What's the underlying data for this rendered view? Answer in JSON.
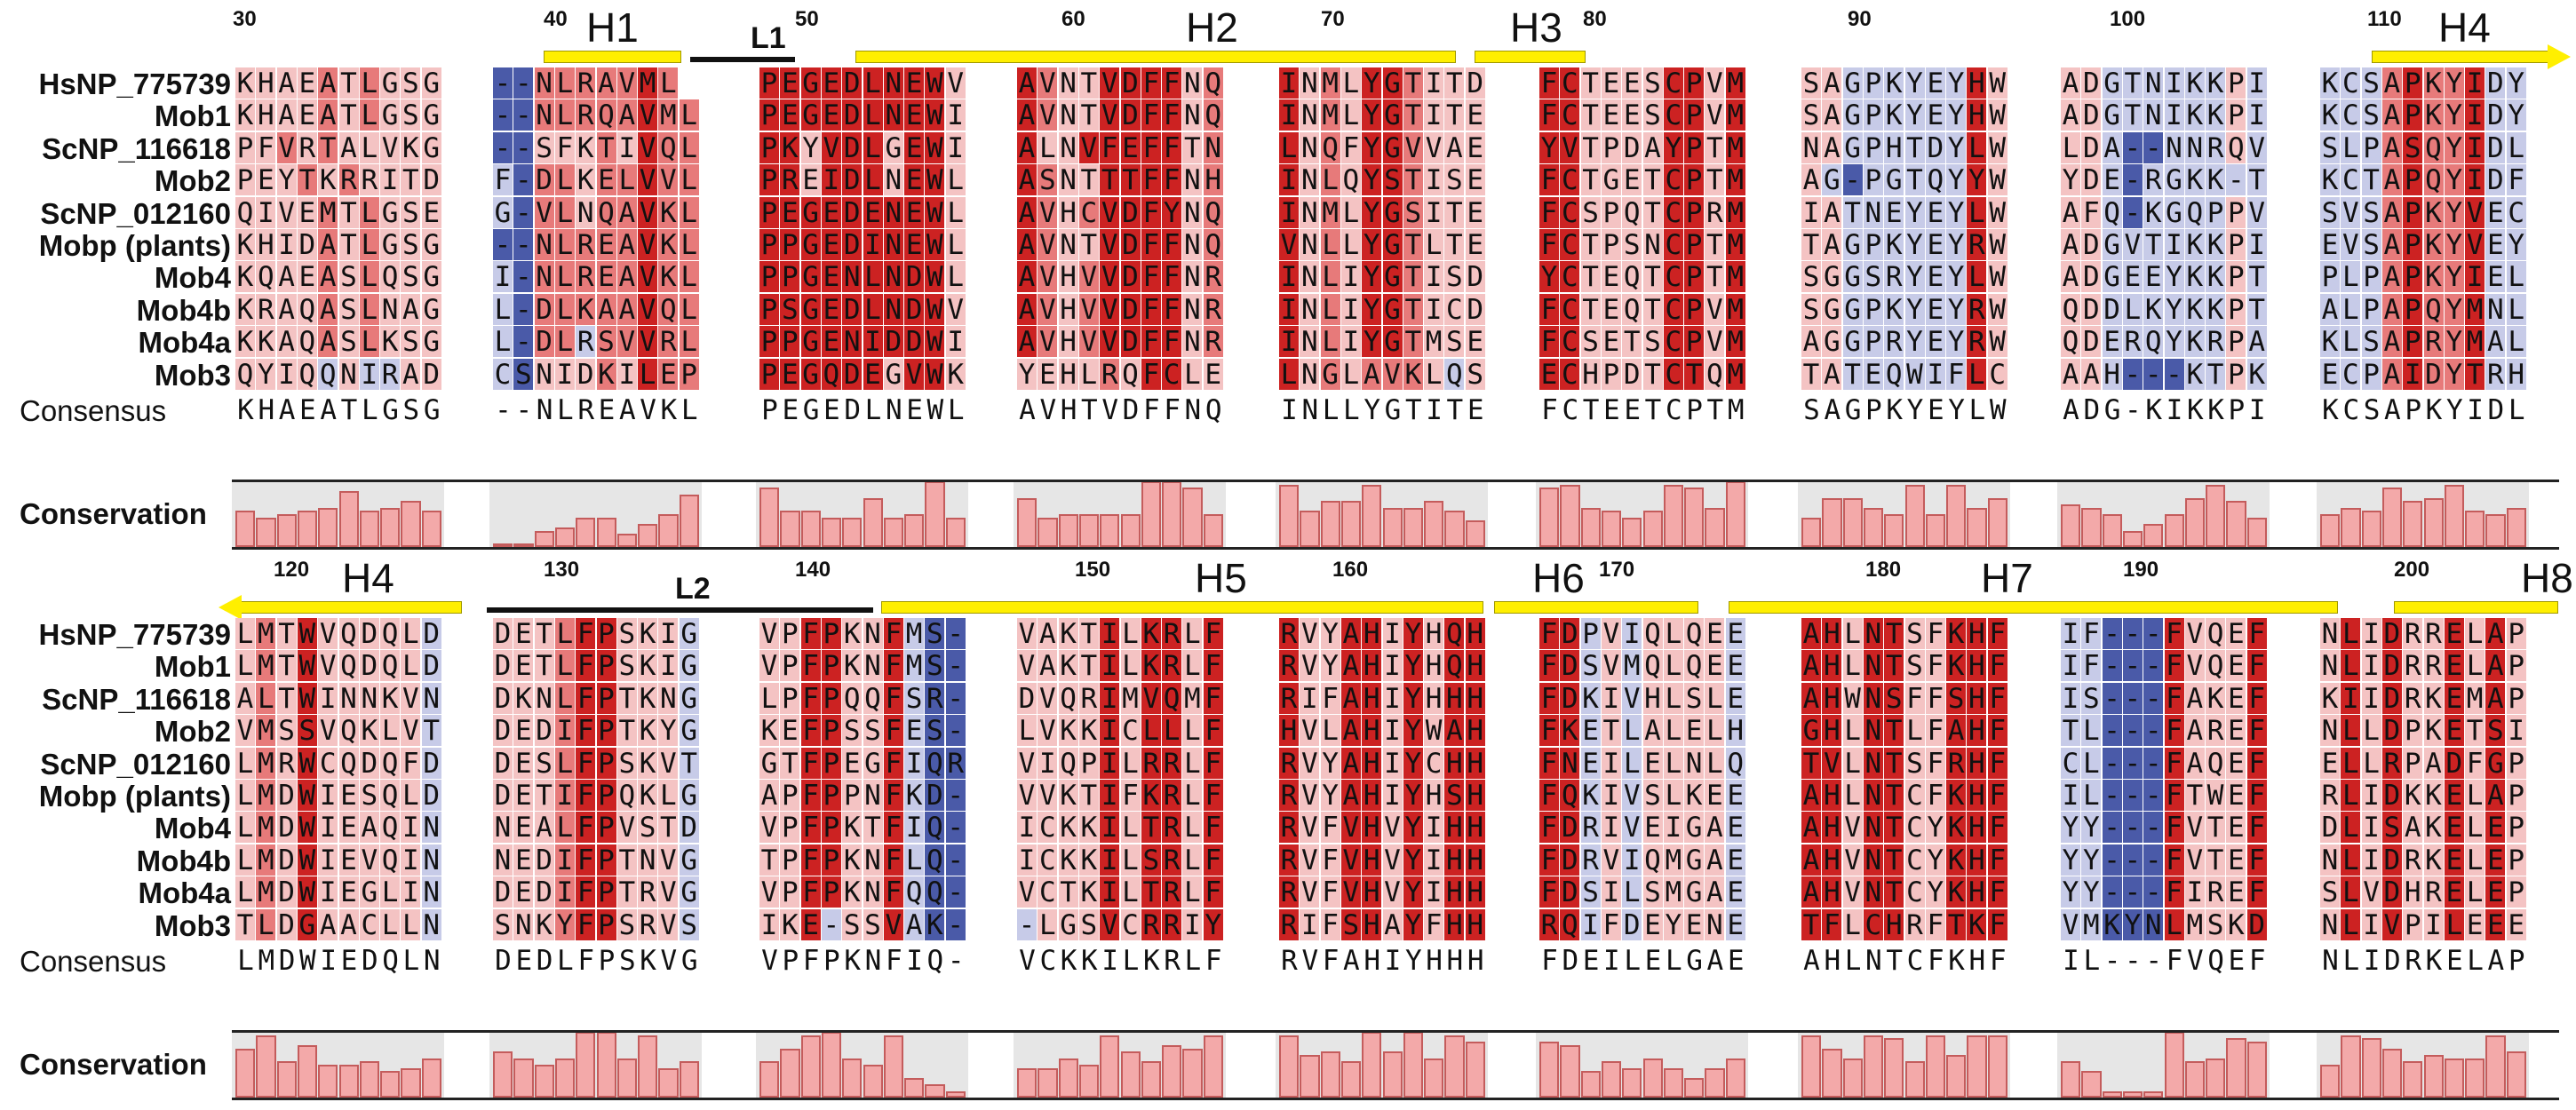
{
  "sequence_names": [
    "HsNP_775739",
    "Mob1",
    "ScNP_116618",
    "Mob2",
    "ScNP_012160",
    "Mobp (plants)",
    "Mob4",
    "Mob4b",
    "Mob4a",
    "Mob3"
  ],
  "consensus_label": "Consensus",
  "conservation_label": "Conservation",
  "colors": {
    "strong_red": "#cc2222",
    "mid_red": "#e77a7a",
    "light_red": "#f4c3c3",
    "light_blue": "#c7cbe8",
    "mid_blue": "#8e97cf",
    "dark_blue": "#4a5aa8",
    "helix": "#ffef00",
    "bar": "#f3a9a9"
  },
  "blocks": [
    {
      "position_numbers": [
        "30",
        "40",
        "50",
        "60",
        "70",
        "80",
        "90",
        "100",
        "110"
      ],
      "structure_labels": [
        "H1",
        "L1",
        "H2",
        "H3",
        "H4"
      ],
      "groups": [
        [
          "KHAEATLGSG",
          "KHAEATLGSG",
          "PFVRTALVKG",
          "PEYTKRRITD",
          "QIVEMTLGSE",
          "KHIDATLGSG",
          "KQAEASLQSG",
          "KRAQASLNAG",
          "KKAQASLKSG",
          "QYIQQNIRAD"
        ],
        [
          "--NLRAVML",
          "--NLRQAVML",
          "--SFKTIVQL",
          "F-DLKELVVL",
          "G-VLNQAVKL",
          "--NLREAVKL",
          "I-NLREAVKL",
          "L-DLKAAVQL",
          "L-DLRSVVRL",
          "CSNIDKILEP"
        ],
        [
          "PEGEDLNEWV",
          "PEGEDLNEWI",
          "PKYVDLGEWI",
          "PREIDLNEWL",
          "PEGEDENEWL",
          "PPGEDINEWL",
          "PPGENLNDWL",
          "PSGEDLNDWV",
          "PPGENIDDWI",
          "PEGQDEGVWK"
        ],
        [
          "AVNTVDFFNQ",
          "AVNTVDFFNQ",
          "ALNVFEFFTN",
          "ASNTTTFFNH",
          "AVHCVDFYNQ",
          "AVNTVDFFNQ",
          "AVHVVDFFNR",
          "AVHVVDFFNR",
          "AVHVVDFFNR",
          "YEHLRQFCLE"
        ],
        [
          "INMLYGTITD",
          "INMLYGTITE",
          "LNQFYGVVAE",
          "INLQYSTISE",
          "INMLYGSITE",
          "VNLLYGTLTE",
          "INLIYGTISD",
          "INLIYGTICD",
          "INLIYGTMSE",
          "LNGLAVKLQS"
        ],
        [
          "FCTEESCPVM",
          "FCTEESCPVM",
          "YVTPDAYPTM",
          "FCTGETCPTM",
          "FCSPQTCPRM",
          "FCTPSNCPTM",
          "YCTEQTCPTM",
          "FCTEQTCPVM",
          "FCSETSCPVM",
          "ECHPDTCTQM"
        ],
        [
          "SAGPKYEYHW",
          "SAGPKYEYHW",
          "NAGPHTDYLW",
          "AG-PGTQYYW",
          "IATNEYEYLW",
          "TAGPKYEYRW",
          "SGGSRYEYLW",
          "SGGPKYEYRW",
          "AGGPRYEYRW",
          "TATEQWIFLC"
        ],
        [
          "ADGTNIKKPI",
          "ADGTNIKKPI",
          "LDA--NNRQV",
          "YDE-RGKK-T",
          "AFQ-KGQPPV",
          "ADGVTIKKPI",
          "ADGEEYKKPT",
          "QDDLKYKKPT",
          "QDERQYKRPA",
          "AAH---KTPK"
        ],
        [
          "KCSAPKYIDY",
          "KCSAPKYIDY",
          "SLPASQYIDL",
          "KCTAPQYIDF",
          "SVSAPKYVEC",
          "EVSAPKYVEY",
          "PLPAPKYIEL",
          "ALPAPQYMNL",
          "KLSAPRYMAL",
          "ECPAIDYTRH"
        ]
      ],
      "consensus": [
        "KHAEATLGSG",
        "--NLREAVKL",
        "PEGEDLNEWL",
        "AVHTVDFFNQ",
        "INLLYGTITE",
        "FCTEETCPTM",
        "SAGPKYEYLW",
        "ADG-KIKKPI",
        "KCSAPKYIDL"
      ],
      "conservation": [
        [
          0.55,
          0.45,
          0.5,
          0.55,
          0.6,
          0.85,
          0.55,
          0.6,
          0.7,
          0.55
        ],
        [
          0.05,
          0.05,
          0.25,
          0.3,
          0.45,
          0.45,
          0.2,
          0.35,
          0.5,
          0.8
        ],
        [
          0.9,
          0.55,
          0.55,
          0.45,
          0.45,
          0.75,
          0.45,
          0.5,
          1.0,
          0.45
        ],
        [
          0.75,
          0.45,
          0.5,
          0.5,
          0.5,
          0.5,
          1.0,
          1.0,
          0.9,
          0.5
        ],
        [
          0.95,
          0.55,
          0.7,
          0.7,
          0.95,
          0.6,
          0.6,
          0.7,
          0.55,
          0.4
        ],
        [
          0.9,
          0.95,
          0.6,
          0.55,
          0.45,
          0.55,
          0.95,
          0.9,
          0.6,
          1.0
        ],
        [
          0.45,
          0.75,
          0.75,
          0.6,
          0.5,
          0.95,
          0.5,
          0.95,
          0.6,
          0.75
        ],
        [
          0.65,
          0.6,
          0.5,
          0.25,
          0.35,
          0.5,
          0.75,
          0.95,
          0.7,
          0.45
        ],
        [
          0.5,
          0.6,
          0.55,
          0.9,
          0.7,
          0.75,
          0.95,
          0.55,
          0.5,
          0.6
        ]
      ],
      "colors": [
        [
          "llllrdrlll",
          "llllrdrlll",
          "llrlmlllll",
          "lllrlrllll",
          "llllrdrlll",
          "llllrdrlll",
          "llllrdrlll",
          "llllrdrlll",
          "llllrdrlll",
          "llllbdbbll"
        ],
        [
          "BBrrmmrRrr",
          "BBrrmmrRrr",
          "BBlllrlRrr",
          "bBrrlmrRrr",
          "bBrmlmmRrr",
          "BBrrmmrRrr",
          "bBrrmmrRrr",
          "bBrrmmrRrr",
          "bBrrbmrRrr",
          "bBlllrlRrr"
        ],
        [
          "RRRRRRRRRl",
          "RRRRRRRRRl",
          "RRlRRRlRRl",
          "RRlRRRlRRl",
          "RRRRRRRRRl",
          "RRRRRRRRRl",
          "RRRRRRRRRl",
          "RRRRRRRRRl",
          "RRRRRRRRRl",
          "RRRRRRlRRl"
        ],
        [
          "RmllRRRRlr",
          "RmllRRRRlr",
          "RllRRRRRlr",
          "RmllRRRRlr",
          "RmlmRRRRlr",
          "RmllRRRRlr",
          "RmlmRRRRlr",
          "RmlmRRRRlr",
          "RmlmRRRRlr",
          "llllrlRRll"
        ],
        [
          "RlmlRRmlll",
          "RlmlRRmlll",
          "RlmlRRmlll",
          "RlmlRRmlll",
          "RlmlRRmlll",
          "RlmlRRmlll",
          "RlmlRRmlll",
          "RlmlRRmlll",
          "RlmlRRmlll",
          "RlmlmmmlIl"
        ],
        [
          "RRllllRRlR",
          "RRllllRRlR",
          "RRllllRRlR",
          "RRllllRRlR",
          "RRllllRRlR",
          "RRllllRRlR",
          "RRllllRRlR",
          "RRllllRRlR",
          "RRllllRRlR",
          "RRllllRRlR"
        ],
        [
          "llbbbbbbRl",
          "llbbbbbbRl",
          "llbbbbbbRl",
          "lbbbbbbbRl",
          "llbbbbbbRl",
          "llbbbbbbRl",
          "llbbbbbbRl",
          "llbbbbbbRl",
          "llbbbbbbRl",
          "llbbbbbbRl"
        ],
        [
          "llbbbbbblb",
          "llbbbbbblb",
          "llbBBbbblb",
          "llbBbbbblb",
          "llbBbbbblb",
          "llbbbbbblb",
          "llbbbbbblb",
          "llbbbbbblb",
          "llbbbbbblb",
          "llbBBBbblb"
        ],
        [
          "bbbrRmrRbb",
          "bbbrRmrRbb",
          "bbbrRmrRbb",
          "bbbrRmrRbb",
          "bbbrRmrRbb",
          "bbbrRmrRbb",
          "bbbrRmrRbb",
          "bbbrRmrRbb",
          "bbbrRmrRbb",
          "bbbrRmrRbb"
        ]
      ]
    },
    {
      "position_numbers": [
        "120",
        "130",
        "140",
        "150",
        "160",
        "170",
        "180",
        "190",
        "200"
      ],
      "structure_labels": [
        "H4",
        "L2",
        "H5",
        "H6",
        "H7",
        "H8"
      ],
      "groups": [
        [
          "LMTWVQDQLD",
          "LMTWVQDQLD",
          "ALTWINNKVN",
          "VMSSVQKLVT",
          "LMRWCQDQFD",
          "LMDWIESQLD",
          "LMDWIEAQIN",
          "LMDWIEVQIN",
          "LMDWIEGLIN",
          "TLDGAACLLN"
        ],
        [
          "DETLFPSKIG",
          "DETLFPSKIG",
          "DKNLFPTKNG",
          "DEDIFPTKYG",
          "DESLFPSKVT",
          "DETIFPQKLG",
          "NEALFPVSTD",
          "NEDIFPTNVG",
          "DEDIFPTRVG",
          "SNKYFPSRVS"
        ],
        [
          "VPFPKNFMS-",
          "VPFPKNFMS-",
          "LPFPQQFSR-",
          "KEFPSSFES-",
          "GTFPEGFIQR",
          "APFPPNFKD-",
          "VPFPKTFIQ-",
          "TPFPKNFLQ-",
          "VPFPKNFQQ-",
          "IKE-SSVAK-"
        ],
        [
          "VAKTILKRLF",
          "VAKTILKRLF",
          "DVQRIMVQMF",
          "LVKKICLLLF",
          "VIQPILRRLF",
          "VVKTIFKRLF",
          "ICKKILTRLF",
          "ICKKILSRLF",
          "VCTKILTRLF",
          "-LGSVCRRIY"
        ],
        [
          "RVYAHIYHQH",
          "RVYAHIYHQH",
          "RIFAHIYHHH",
          "HVLAHIYWAH",
          "RVYAHIYCHH",
          "RVYAHIYHSH",
          "RVFVHVYIHH",
          "RVFVHVYIHH",
          "RVFVHVYIHH",
          "RIFSHAYFHH"
        ],
        [
          "FDPVIQLQEE",
          "FDSVMQLQEE",
          "FDKIVHLSLE",
          "FKETLALELH",
          "FNEILELNLQ",
          "FQKIVSLKEE",
          "FDRIVEIGAE",
          "FDRVIQMGAE",
          "FDSILSMGAE",
          "RQIFDEYENE"
        ],
        [
          "AHLNTSFKHF",
          "AHLNTSFKHF",
          "AHWNSFFSHF",
          "GHLNTLFAHF",
          "TVLNTSFRHF",
          "AHLNTCFKHF",
          "AHVNTCYKHF",
          "AHVNTCYKHF",
          "AHVNTCYKHF",
          "TFLCHRFTKF"
        ],
        [
          "IF---FVQEF",
          "IF---FVQEF",
          "IS---FAKEF",
          "TL---FAREF",
          "CL---FAQEF",
          "IL---FTWEF",
          "YY---FVTEF",
          "YY---FVTEF",
          "YY---FIREF",
          "VMKYNLMSKD"
        ],
        [
          "NLIDRRELAP",
          "NLIDRRELAP",
          "KIIDRKEMAP",
          "NLLDPKETSI",
          "ELLRPADFGP",
          "RLIDKKELAP",
          "DLISAKELEP",
          "NLIDRKELEP",
          "SLVDHRELEP",
          "NLIVPILEEE"
        ]
      ],
      "consensus": [
        "LMDWIEDQLN",
        "DEDLFPSKVG",
        "VPFPKNFIQ-",
        "VCKKILKRLF",
        "RVFAHIYHHH",
        "FDEILELGAE",
        "AHLNTCFKHF",
        "IL---FVQEF",
        "NLIDRKELAP"
      ],
      "conservation": [
        [
          0.75,
          0.95,
          0.55,
          0.8,
          0.5,
          0.5,
          0.55,
          0.4,
          0.45,
          0.6
        ],
        [
          0.7,
          0.6,
          0.5,
          0.6,
          1.0,
          1.0,
          0.6,
          0.95,
          0.45,
          0.55
        ],
        [
          0.55,
          0.75,
          0.95,
          1.0,
          0.6,
          0.5,
          0.95,
          0.3,
          0.2,
          0.1
        ],
        [
          0.45,
          0.45,
          0.6,
          0.5,
          0.95,
          0.7,
          0.55,
          0.8,
          0.75,
          0.95
        ],
        [
          0.95,
          0.65,
          0.7,
          0.55,
          1.0,
          0.7,
          1.0,
          0.6,
          0.95,
          0.85
        ],
        [
          0.85,
          0.8,
          0.4,
          0.55,
          0.45,
          0.6,
          0.45,
          0.3,
          0.45,
          0.6
        ],
        [
          0.95,
          0.75,
          0.6,
          0.95,
          0.9,
          0.55,
          0.95,
          0.65,
          0.95,
          0.95
        ],
        [
          0.55,
          0.4,
          0.1,
          0.1,
          0.1,
          1.0,
          0.55,
          0.6,
          0.9,
          0.85
        ],
        [
          0.5,
          0.95,
          0.9,
          0.75,
          0.55,
          0.65,
          0.6,
          0.6,
          0.95,
          0.7
        ]
      ],
      "colors": [
        [
          "lrlRlllllb",
          "lrlRlllllb",
          "lrlRlllllb",
          "lrlRlllllb",
          "lrlRlllllb",
          "lrlRlllllb",
          "lrlRlllllb",
          "lrlRlllllb",
          "lrlRlllllb",
          "lrlRlllllb"
        ],
        [
          "lllrRRlllb",
          "lllrRRlllb",
          "lllrRRlllb",
          "lllrRRlllb",
          "lllrRRlllb",
          "lllrRRlllb",
          "lllrRRlllb",
          "lllrRRlllb",
          "lllrRRlllb",
          "lllrRRlllb"
        ],
        [
          "llRRllRbBB",
          "llRRllRbBB",
          "llRRllRbBB",
          "llRRllRbBB",
          "llRRllRbBB",
          "llRRllRbBB",
          "llRRllRbBB",
          "llRRllRbBB",
          "llRRllRbBB",
          "llRRllRbBB"
        ],
        [
          "llllRlRRlR",
          "llllRlRRlR",
          "llllRlRRlR",
          "llllRlRRlR",
          "llllRlRRlR",
          "llllRlRRlR",
          "llllRlRRlR",
          "llllRlRRlR",
          "llllRlRRlR",
          "llllRlRRlR"
        ],
        [
          "RllRRlRlRR",
          "RllRRlRlRR",
          "RllRRlRlRR",
          "RllRRlRlRR",
          "RllRRlRlRR",
          "RllRRlRlRR",
          "RllRRlRlRR",
          "RllRRlRlRR",
          "RllRRlRlRR",
          "RllRRlRlRR"
        ],
        [
          "RRblbllllb",
          "RRblbllllb",
          "RRblbllllb",
          "RRblbllllb",
          "RRblbllllb",
          "RRblbllllb",
          "RRblbllllb",
          "RRblbllllb",
          "RRblbllllb",
          "RRblbllllb"
        ],
        [
          "RRlRRllRRR",
          "RRlRRllRRR",
          "RRlRRllRRR",
          "RRlRRllRRR",
          "RRlRRllRRR",
          "RRlRRllRRR",
          "RRlRRllRRR",
          "RRlRRllRRR",
          "RRlRRllRRR",
          "RRlRRllRRR"
        ],
        [
          "bbBBBRlllR",
          "bbBBBRlllR",
          "bbBBBRlllR",
          "bbBBBRlllR",
          "bbBBBRlllR",
          "bbBBBRlllR",
          "bbBBBRlllR",
          "bbBBBRlllR",
          "bbBBBRlllR",
          "bbBBBRlllR"
        ],
        [
          "lRlRllRlRl",
          "lRlRllRlRl",
          "lRlRllRlRl",
          "lRlRllRlRl",
          "lRlRllRlRl",
          "lRlRllRlRl",
          "lRlRllRlRl",
          "lRlRllRlRl",
          "lRlRllRlRl",
          "lRlRllRlRl"
        ]
      ]
    }
  ]
}
